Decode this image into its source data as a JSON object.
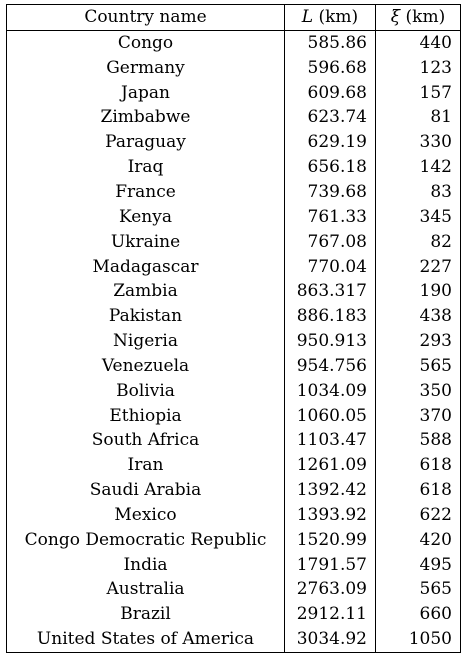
{
  "table": {
    "headers": {
      "country": "Country name",
      "length_symbol": "L",
      "length_unit": "(km)",
      "xi_symbol": "ξ",
      "xi_unit": "(km)"
    },
    "rows": [
      {
        "country": "Congo",
        "L": "585.86",
        "xi": "440"
      },
      {
        "country": "Germany",
        "L": "596.68",
        "xi": "123"
      },
      {
        "country": "Japan",
        "L": "609.68",
        "xi": "157"
      },
      {
        "country": "Zimbabwe",
        "L": "623.74",
        "xi": "81"
      },
      {
        "country": "Paraguay",
        "L": "629.19",
        "xi": "330"
      },
      {
        "country": "Iraq",
        "L": "656.18",
        "xi": "142"
      },
      {
        "country": "France",
        "L": "739.68",
        "xi": "83"
      },
      {
        "country": "Kenya",
        "L": "761.33",
        "xi": "345"
      },
      {
        "country": "Ukraine",
        "L": "767.08",
        "xi": "82"
      },
      {
        "country": "Madagascar",
        "L": "770.04",
        "xi": "227"
      },
      {
        "country": "Zambia",
        "L": "863.317",
        "xi": "190"
      },
      {
        "country": "Pakistan",
        "L": "886.183",
        "xi": "438"
      },
      {
        "country": "Nigeria",
        "L": "950.913",
        "xi": "293"
      },
      {
        "country": "Venezuela",
        "L": "954.756",
        "xi": "565"
      },
      {
        "country": "Bolivia",
        "L": "1034.09",
        "xi": "350"
      },
      {
        "country": "Ethiopia",
        "L": "1060.05",
        "xi": "370"
      },
      {
        "country": "South Africa",
        "L": "1103.47",
        "xi": "588"
      },
      {
        "country": "Iran",
        "L": "1261.09",
        "xi": "618"
      },
      {
        "country": "Saudi Arabia",
        "L": "1392.42",
        "xi": "618"
      },
      {
        "country": "Mexico",
        "L": "1393.92",
        "xi": "622"
      },
      {
        "country": "Congo Democratic Republic",
        "L": "1520.99",
        "xi": "420"
      },
      {
        "country": "India",
        "L": "1791.57",
        "xi": "495"
      },
      {
        "country": "Australia",
        "L": "2763.09",
        "xi": "565"
      },
      {
        "country": "Brazil",
        "L": "2912.11",
        "xi": "660"
      },
      {
        "country": "United States of America",
        "L": "3034.92",
        "xi": "1050"
      }
    ]
  }
}
